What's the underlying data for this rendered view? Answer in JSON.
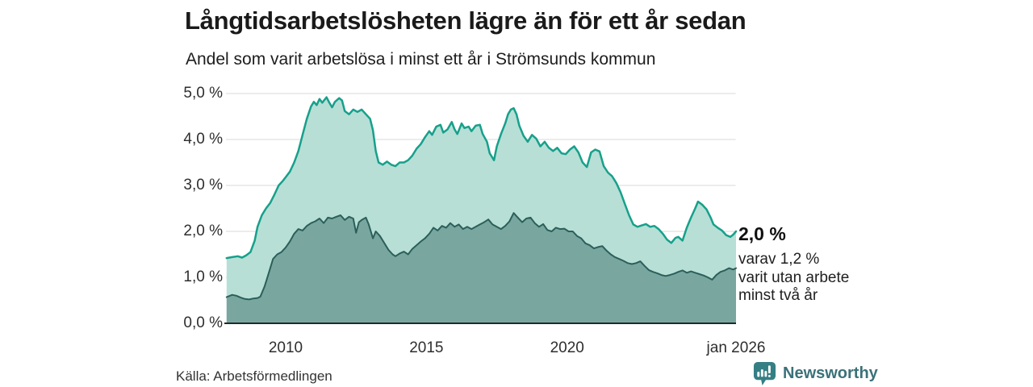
{
  "header": {
    "title": "Långtidsarbetslösheten lägre än för ett år sedan",
    "subtitle": "Andel som varit arbetslösa i minst ett år i Strömsunds kommun"
  },
  "annotation": {
    "value": "2,0 %",
    "lines": [
      "varav 1,2 %",
      "varit utan arbete",
      "minst två år"
    ]
  },
  "footer": {
    "source": "Källa: Arbetsförmedlingen",
    "brand": "Newsworthy"
  },
  "colors": {
    "series1_line": "#17a08b",
    "series1_fill": "#b7dfd6",
    "series2_line": "#2b5f5a",
    "series2_fill": "#79a7a0",
    "gridline": "#d9d9d9",
    "axis_line": "#1f2b2a",
    "brand_teal": "#347f84"
  },
  "chart_data": {
    "type": "area",
    "title": "Långtidsarbetslösheten lägre än för ett år sedan",
    "subtitle": "Andel som varit arbetslösa i minst ett år i Strömsunds kommun",
    "grid": true,
    "legend": "none (direct end labels)",
    "x_axis": {
      "unit": "decimal_year",
      "range": [
        2007.9,
        2026.0
      ],
      "ticks": [
        {
          "label": "2010",
          "t": 2010
        },
        {
          "label": "2015",
          "t": 2015
        },
        {
          "label": "2020",
          "t": 2020
        },
        {
          "label": "jan 2026",
          "t": 2026
        }
      ]
    },
    "y_axis": {
      "unit": "%",
      "range": [
        0,
        5.3
      ],
      "ticks": [
        {
          "label": "0,0 %",
          "v": 0
        },
        {
          "label": "1,0 %",
          "v": 1
        },
        {
          "label": "2,0 %",
          "v": 2
        },
        {
          "label": "3,0 %",
          "v": 3
        },
        {
          "label": "4,0 %",
          "v": 4
        },
        {
          "label": "5,0 %",
          "v": 5
        }
      ]
    },
    "series": [
      {
        "name": "Andel som varit arbetslösa i minst ett år",
        "end_label": "2,0 %",
        "end_value": 2.0,
        "points": [
          [
            2007.9,
            1.42
          ],
          [
            2008.1,
            1.44
          ],
          [
            2008.3,
            1.46
          ],
          [
            2008.45,
            1.43
          ],
          [
            2008.6,
            1.48
          ],
          [
            2008.75,
            1.55
          ],
          [
            2008.9,
            1.8
          ],
          [
            2009.0,
            2.1
          ],
          [
            2009.15,
            2.35
          ],
          [
            2009.3,
            2.5
          ],
          [
            2009.45,
            2.62
          ],
          [
            2009.6,
            2.8
          ],
          [
            2009.75,
            3.0
          ],
          [
            2009.9,
            3.1
          ],
          [
            2010.0,
            3.18
          ],
          [
            2010.15,
            3.3
          ],
          [
            2010.3,
            3.5
          ],
          [
            2010.45,
            3.75
          ],
          [
            2010.6,
            4.1
          ],
          [
            2010.75,
            4.45
          ],
          [
            2010.9,
            4.72
          ],
          [
            2011.0,
            4.82
          ],
          [
            2011.1,
            4.75
          ],
          [
            2011.2,
            4.88
          ],
          [
            2011.3,
            4.8
          ],
          [
            2011.45,
            4.92
          ],
          [
            2011.55,
            4.8
          ],
          [
            2011.65,
            4.7
          ],
          [
            2011.75,
            4.82
          ],
          [
            2011.9,
            4.9
          ],
          [
            2012.0,
            4.85
          ],
          [
            2012.1,
            4.62
          ],
          [
            2012.25,
            4.55
          ],
          [
            2012.4,
            4.65
          ],
          [
            2012.55,
            4.6
          ],
          [
            2012.7,
            4.65
          ],
          [
            2012.85,
            4.55
          ],
          [
            2013.0,
            4.45
          ],
          [
            2013.1,
            4.2
          ],
          [
            2013.2,
            3.75
          ],
          [
            2013.3,
            3.5
          ],
          [
            2013.45,
            3.45
          ],
          [
            2013.6,
            3.52
          ],
          [
            2013.75,
            3.45
          ],
          [
            2013.9,
            3.42
          ],
          [
            2014.05,
            3.5
          ],
          [
            2014.2,
            3.5
          ],
          [
            2014.35,
            3.55
          ],
          [
            2014.5,
            3.65
          ],
          [
            2014.65,
            3.8
          ],
          [
            2014.8,
            3.9
          ],
          [
            2014.95,
            4.05
          ],
          [
            2015.1,
            4.18
          ],
          [
            2015.2,
            4.1
          ],
          [
            2015.35,
            4.28
          ],
          [
            2015.5,
            4.32
          ],
          [
            2015.6,
            4.15
          ],
          [
            2015.75,
            4.22
          ],
          [
            2015.9,
            4.38
          ],
          [
            2016.0,
            4.22
          ],
          [
            2016.1,
            4.12
          ],
          [
            2016.25,
            4.35
          ],
          [
            2016.35,
            4.25
          ],
          [
            2016.5,
            4.28
          ],
          [
            2016.6,
            4.18
          ],
          [
            2016.75,
            4.3
          ],
          [
            2016.9,
            4.32
          ],
          [
            2017.0,
            4.12
          ],
          [
            2017.15,
            3.95
          ],
          [
            2017.25,
            3.7
          ],
          [
            2017.4,
            3.55
          ],
          [
            2017.5,
            3.85
          ],
          [
            2017.65,
            4.12
          ],
          [
            2017.8,
            4.35
          ],
          [
            2017.9,
            4.55
          ],
          [
            2018.0,
            4.65
          ],
          [
            2018.1,
            4.68
          ],
          [
            2018.2,
            4.55
          ],
          [
            2018.3,
            4.3
          ],
          [
            2018.45,
            4.08
          ],
          [
            2018.6,
            3.95
          ],
          [
            2018.75,
            4.1
          ],
          [
            2018.9,
            4.02
          ],
          [
            2019.05,
            3.85
          ],
          [
            2019.2,
            3.95
          ],
          [
            2019.35,
            3.82
          ],
          [
            2019.5,
            3.75
          ],
          [
            2019.65,
            3.82
          ],
          [
            2019.8,
            3.7
          ],
          [
            2019.95,
            3.68
          ],
          [
            2020.1,
            3.78
          ],
          [
            2020.25,
            3.85
          ],
          [
            2020.4,
            3.72
          ],
          [
            2020.55,
            3.5
          ],
          [
            2020.7,
            3.4
          ],
          [
            2020.85,
            3.72
          ],
          [
            2021.0,
            3.78
          ],
          [
            2021.15,
            3.74
          ],
          [
            2021.3,
            3.42
          ],
          [
            2021.45,
            3.28
          ],
          [
            2021.6,
            3.2
          ],
          [
            2021.75,
            3.05
          ],
          [
            2021.9,
            2.85
          ],
          [
            2022.05,
            2.6
          ],
          [
            2022.2,
            2.35
          ],
          [
            2022.35,
            2.15
          ],
          [
            2022.5,
            2.1
          ],
          [
            2022.65,
            2.13
          ],
          [
            2022.8,
            2.16
          ],
          [
            2022.95,
            2.1
          ],
          [
            2023.1,
            2.12
          ],
          [
            2023.25,
            2.05
          ],
          [
            2023.4,
            1.95
          ],
          [
            2023.55,
            1.82
          ],
          [
            2023.7,
            1.75
          ],
          [
            2023.85,
            1.86
          ],
          [
            2023.95,
            1.88
          ],
          [
            2024.1,
            1.8
          ],
          [
            2024.25,
            2.08
          ],
          [
            2024.4,
            2.3
          ],
          [
            2024.55,
            2.5
          ],
          [
            2024.65,
            2.65
          ],
          [
            2024.8,
            2.58
          ],
          [
            2024.95,
            2.48
          ],
          [
            2025.1,
            2.3
          ],
          [
            2025.2,
            2.15
          ],
          [
            2025.35,
            2.08
          ],
          [
            2025.5,
            2.02
          ],
          [
            2025.65,
            1.92
          ],
          [
            2025.8,
            1.88
          ],
          [
            2025.9,
            1.93
          ],
          [
            2026.0,
            2.0
          ]
        ]
      },
      {
        "name": "varav varit utan arbete minst två år",
        "end_label": "1,2 %",
        "end_value": 1.2,
        "points": [
          [
            2007.9,
            0.57
          ],
          [
            2008.1,
            0.62
          ],
          [
            2008.25,
            0.6
          ],
          [
            2008.4,
            0.56
          ],
          [
            2008.55,
            0.53
          ],
          [
            2008.7,
            0.52
          ],
          [
            2008.85,
            0.54
          ],
          [
            2009.0,
            0.55
          ],
          [
            2009.1,
            0.58
          ],
          [
            2009.25,
            0.8
          ],
          [
            2009.4,
            1.1
          ],
          [
            2009.55,
            1.4
          ],
          [
            2009.7,
            1.5
          ],
          [
            2009.85,
            1.55
          ],
          [
            2010.0,
            1.65
          ],
          [
            2010.15,
            1.78
          ],
          [
            2010.3,
            1.95
          ],
          [
            2010.45,
            2.05
          ],
          [
            2010.6,
            2.02
          ],
          [
            2010.75,
            2.12
          ],
          [
            2010.9,
            2.18
          ],
          [
            2011.05,
            2.22
          ],
          [
            2011.2,
            2.28
          ],
          [
            2011.35,
            2.18
          ],
          [
            2011.5,
            2.3
          ],
          [
            2011.65,
            2.28
          ],
          [
            2011.8,
            2.32
          ],
          [
            2011.95,
            2.35
          ],
          [
            2012.1,
            2.25
          ],
          [
            2012.25,
            2.32
          ],
          [
            2012.4,
            2.28
          ],
          [
            2012.5,
            1.97
          ],
          [
            2012.6,
            2.2
          ],
          [
            2012.7,
            2.25
          ],
          [
            2012.85,
            2.3
          ],
          [
            2012.95,
            2.15
          ],
          [
            2013.1,
            1.85
          ],
          [
            2013.2,
            2.0
          ],
          [
            2013.35,
            1.9
          ],
          [
            2013.5,
            1.75
          ],
          [
            2013.65,
            1.6
          ],
          [
            2013.8,
            1.5
          ],
          [
            2013.9,
            1.46
          ],
          [
            2014.05,
            1.52
          ],
          [
            2014.2,
            1.56
          ],
          [
            2014.35,
            1.5
          ],
          [
            2014.5,
            1.62
          ],
          [
            2014.65,
            1.7
          ],
          [
            2014.8,
            1.78
          ],
          [
            2014.95,
            1.85
          ],
          [
            2015.1,
            1.95
          ],
          [
            2015.25,
            2.08
          ],
          [
            2015.4,
            2.02
          ],
          [
            2015.55,
            2.12
          ],
          [
            2015.7,
            2.08
          ],
          [
            2015.85,
            2.18
          ],
          [
            2016.0,
            2.1
          ],
          [
            2016.15,
            2.15
          ],
          [
            2016.3,
            2.05
          ],
          [
            2016.45,
            2.1
          ],
          [
            2016.6,
            2.05
          ],
          [
            2016.75,
            2.1
          ],
          [
            2016.9,
            2.15
          ],
          [
            2017.05,
            2.2
          ],
          [
            2017.2,
            2.26
          ],
          [
            2017.35,
            2.15
          ],
          [
            2017.5,
            2.1
          ],
          [
            2017.65,
            2.05
          ],
          [
            2017.8,
            2.12
          ],
          [
            2017.95,
            2.22
          ],
          [
            2018.1,
            2.4
          ],
          [
            2018.25,
            2.3
          ],
          [
            2018.4,
            2.2
          ],
          [
            2018.55,
            2.28
          ],
          [
            2018.7,
            2.3
          ],
          [
            2018.85,
            2.18
          ],
          [
            2019.0,
            2.1
          ],
          [
            2019.15,
            2.16
          ],
          [
            2019.3,
            2.03
          ],
          [
            2019.45,
            2.0
          ],
          [
            2019.6,
            2.08
          ],
          [
            2019.75,
            2.05
          ],
          [
            2019.9,
            2.06
          ],
          [
            2020.05,
            2.0
          ],
          [
            2020.2,
            2.0
          ],
          [
            2020.35,
            1.9
          ],
          [
            2020.5,
            1.85
          ],
          [
            2020.65,
            1.74
          ],
          [
            2020.8,
            1.7
          ],
          [
            2020.95,
            1.63
          ],
          [
            2021.1,
            1.66
          ],
          [
            2021.25,
            1.68
          ],
          [
            2021.4,
            1.58
          ],
          [
            2021.55,
            1.5
          ],
          [
            2021.7,
            1.44
          ],
          [
            2021.85,
            1.4
          ],
          [
            2022.0,
            1.36
          ],
          [
            2022.15,
            1.31
          ],
          [
            2022.3,
            1.29
          ],
          [
            2022.45,
            1.31
          ],
          [
            2022.6,
            1.35
          ],
          [
            2022.75,
            1.25
          ],
          [
            2022.9,
            1.16
          ],
          [
            2023.05,
            1.12
          ],
          [
            2023.2,
            1.09
          ],
          [
            2023.35,
            1.05
          ],
          [
            2023.5,
            1.03
          ],
          [
            2023.65,
            1.05
          ],
          [
            2023.8,
            1.08
          ],
          [
            2023.95,
            1.12
          ],
          [
            2024.1,
            1.15
          ],
          [
            2024.25,
            1.1
          ],
          [
            2024.4,
            1.13
          ],
          [
            2024.55,
            1.1
          ],
          [
            2024.7,
            1.07
          ],
          [
            2024.85,
            1.04
          ],
          [
            2025.0,
            1.0
          ],
          [
            2025.15,
            0.95
          ],
          [
            2025.3,
            1.05
          ],
          [
            2025.45,
            1.12
          ],
          [
            2025.6,
            1.15
          ],
          [
            2025.75,
            1.2
          ],
          [
            2025.9,
            1.17
          ],
          [
            2026.0,
            1.2
          ]
        ]
      }
    ]
  }
}
